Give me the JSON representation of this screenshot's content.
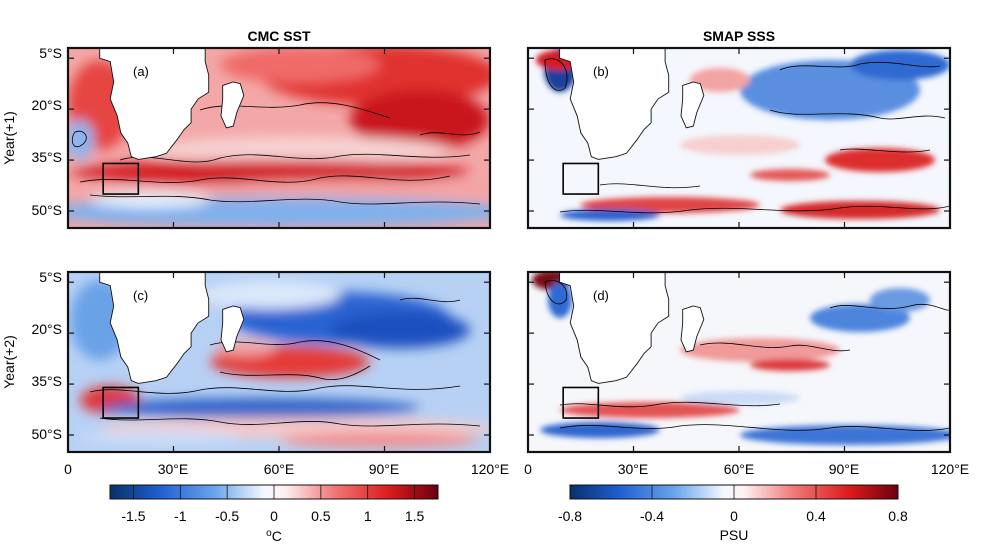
{
  "columns": [
    {
      "title": "CMC SST"
    },
    {
      "title": "SMAP SSS"
    }
  ],
  "rows": [
    {
      "label": "Year(+1)"
    },
    {
      "label": "Year(+2)"
    }
  ],
  "panels": [
    {
      "letter": "(a)",
      "variable": "SST",
      "row": 0,
      "col": 0,
      "tone": "warm"
    },
    {
      "letter": "(b)",
      "variable": "SSS",
      "row": 0,
      "col": 1,
      "tone": "mixed-fresh"
    },
    {
      "letter": "(c)",
      "variable": "SST",
      "row": 1,
      "col": 0,
      "tone": "cool"
    },
    {
      "letter": "(d)",
      "variable": "SSS",
      "row": 1,
      "col": 1,
      "tone": "mixed-salty"
    }
  ],
  "lat_ticks": [
    "5°S",
    "20°S",
    "35°S",
    "50°S"
  ],
  "lon_ticks": [
    "0",
    "30°E",
    "60°E",
    "90°E",
    "120°E"
  ],
  "extent": {
    "lon": [
      0,
      120
    ],
    "lat_north": -2,
    "lat_south": -55
  },
  "box_region": {
    "lon": [
      10,
      20
    ],
    "lat": [
      -36,
      -45
    ]
  },
  "colorbars": [
    {
      "ticks": [
        "-1.5",
        "-1",
        "-0.5",
        "0",
        "0.5",
        "1",
        "1.5"
      ],
      "range": [
        -1.75,
        1.75
      ],
      "tick_values": [
        -1.5,
        -1,
        -0.5,
        0,
        0.5,
        1,
        1.5
      ],
      "unit_base": "o",
      "unit_main": "C"
    },
    {
      "ticks": [
        "-0.8",
        "-0.4",
        "0",
        "0.4",
        "0.8"
      ],
      "range": [
        -0.8,
        0.8
      ],
      "tick_values": [
        -0.8,
        -0.4,
        0,
        0.4,
        0.8
      ],
      "unit_main": "PSU"
    }
  ],
  "colors": {
    "land": "#ffffff",
    "frame": "#111111",
    "deep_blue": "#08306b",
    "deep_red": "#67000d"
  }
}
